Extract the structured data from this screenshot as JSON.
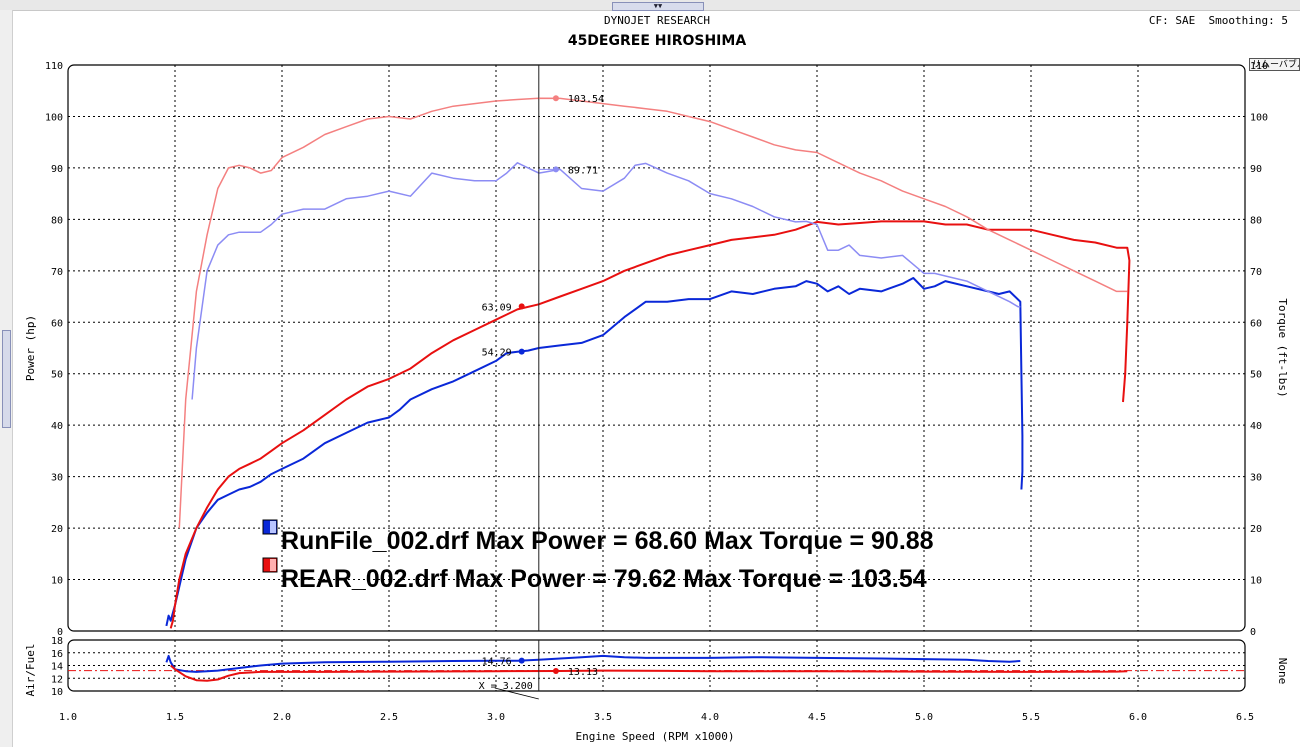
{
  "header": {
    "company": "DYNOJET RESEARCH",
    "title": "45DEGREE HIROSHIMA",
    "correction": "CF: SAE  Smoothing: 5",
    "remove_button": "リムーバブル"
  },
  "colors": {
    "run_power": "#0a28d8",
    "run_torque": "#8c8cf4",
    "rear_power": "#e81010",
    "rear_torque": "#f48080",
    "cursor": "#202020",
    "grid": "#000000"
  },
  "legend": [
    {
      "text": "RunFile_002.drf Max Power = 68.60   Max Torque = 90.88",
      "color": "#0a28d8",
      "icon": "run-file-swatch-icon"
    },
    {
      "text": "REAR_002.drf Max Power = 79.62   Max Torque = 103.54",
      "color": "#e81010",
      "icon": "rear-file-swatch-icon"
    }
  ],
  "chart_data": [
    {
      "type": "line",
      "id": "main",
      "title": "",
      "xlabel": "Engine Speed (RPM x1000)",
      "ylabel": "Power (hp)",
      "ylabel_right": "Torque (ft-lbs)",
      "xlim": [
        1.0,
        6.5
      ],
      "ylim": [
        0,
        110
      ],
      "ylim_right": [
        0,
        110
      ],
      "grid": true,
      "x_ticks": [
        "1.0",
        "1.5",
        "2.0",
        "2.5",
        "3.0",
        "3.5",
        "4.0",
        "4.5",
        "5.0",
        "5.5",
        "6.0",
        "6.5"
      ],
      "y_ticks": [
        "0",
        "10",
        "20",
        "30",
        "40",
        "50",
        "60",
        "70",
        "80",
        "90",
        "100",
        "110"
      ],
      "cursor_x": 3.2,
      "series": [
        {
          "key": "run_power",
          "color": "#0a28d8",
          "width": 2,
          "x": [
            1.46,
            1.47,
            1.48,
            1.5,
            1.55,
            1.6,
            1.65,
            1.7,
            1.75,
            1.8,
            1.85,
            1.9,
            1.95,
            2.0,
            2.1,
            2.2,
            2.3,
            2.4,
            2.5,
            2.55,
            2.6,
            2.7,
            2.8,
            2.9,
            3.0,
            3.05,
            3.1,
            3.15,
            3.2,
            3.3,
            3.4,
            3.5,
            3.6,
            3.7,
            3.8,
            3.9,
            4.0,
            4.1,
            4.2,
            4.3,
            4.4,
            4.45,
            4.5,
            4.55,
            4.6,
            4.65,
            4.7,
            4.8,
            4.9,
            4.95,
            5.0,
            5.05,
            5.1,
            5.2,
            5.3,
            5.35,
            5.4,
            5.45,
            5.455,
            5.46,
            5.46,
            5.455
          ],
          "y": [
            1,
            3,
            2,
            5,
            14,
            20,
            23,
            25.5,
            26.5,
            27.5,
            28,
            29,
            30.5,
            31.5,
            33.5,
            36.5,
            38.5,
            40.5,
            41.5,
            43,
            45,
            47,
            48.5,
            50.5,
            52.5,
            54,
            54.29,
            54.5,
            55,
            55.5,
            56,
            57.5,
            61,
            64,
            64,
            64.5,
            64.5,
            66,
            65.5,
            66.5,
            67,
            68,
            67.5,
            66,
            67,
            65.5,
            66.5,
            66,
            67.5,
            68.6,
            66.5,
            67,
            68,
            67,
            66,
            65.5,
            66,
            64,
            50,
            38,
            31,
            27.5
          ]
        },
        {
          "key": "rear_power",
          "color": "#e81010",
          "width": 2,
          "x": [
            1.48,
            1.49,
            1.5,
            1.52,
            1.55,
            1.6,
            1.65,
            1.7,
            1.75,
            1.8,
            1.85,
            1.9,
            1.95,
            2.0,
            2.1,
            2.2,
            2.3,
            2.4,
            2.5,
            2.6,
            2.7,
            2.8,
            2.9,
            3.0,
            3.1,
            3.2,
            3.3,
            3.4,
            3.5,
            3.6,
            3.7,
            3.8,
            3.9,
            4.0,
            4.1,
            4.2,
            4.3,
            4.4,
            4.5,
            4.6,
            4.7,
            4.8,
            4.9,
            5.0,
            5.1,
            5.2,
            5.3,
            5.4,
            5.5,
            5.6,
            5.7,
            5.8,
            5.9,
            5.95,
            5.96,
            5.95,
            5.94,
            5.93
          ],
          "y": [
            0.5,
            2,
            5,
            10,
            15,
            20,
            24,
            27.5,
            30,
            31.5,
            32.5,
            33.5,
            35,
            36.5,
            39,
            42,
            45,
            47.5,
            49,
            51,
            54,
            56.5,
            58.5,
            60.5,
            62.5,
            63.5,
            65,
            66.5,
            68,
            70,
            71.5,
            73,
            74,
            75,
            76,
            76.5,
            77,
            78,
            79.5,
            79,
            79.3,
            79.6,
            79.6,
            79.6,
            79,
            79,
            78,
            78,
            78,
            77,
            76,
            75.5,
            74.5,
            74.5,
            72,
            60,
            50,
            44.5
          ]
        },
        {
          "key": "run_torque",
          "color": "#8c8cf4",
          "width": 1.5,
          "x": [
            1.58,
            1.6,
            1.65,
            1.7,
            1.75,
            1.8,
            1.85,
            1.9,
            1.95,
            2.0,
            2.1,
            2.2,
            2.3,
            2.4,
            2.5,
            2.6,
            2.7,
            2.8,
            2.9,
            3.0,
            3.05,
            3.1,
            3.2,
            3.3,
            3.4,
            3.5,
            3.6,
            3.65,
            3.7,
            3.8,
            3.9,
            4.0,
            4.1,
            4.2,
            4.3,
            4.4,
            4.45,
            4.5,
            4.55,
            4.6,
            4.65,
            4.7,
            4.8,
            4.9,
            5.0,
            5.05,
            5.1,
            5.2,
            5.3,
            5.4,
            5.44,
            5.45
          ],
          "y": [
            45,
            55,
            70,
            75,
            77,
            77.5,
            77.5,
            77.5,
            79,
            81,
            82,
            82,
            84,
            84.5,
            85.5,
            84.5,
            89,
            88,
            87.5,
            87.5,
            89,
            91,
            89,
            89.71,
            86,
            85.5,
            88,
            90.5,
            90.88,
            89,
            87.5,
            85,
            84,
            82.5,
            80.5,
            79.5,
            79.6,
            79,
            74,
            74,
            75,
            73,
            72.5,
            73,
            69.5,
            69.5,
            69,
            68,
            66,
            64,
            63,
            63
          ]
        },
        {
          "key": "rear_torque",
          "color": "#f48080",
          "width": 1.5,
          "x": [
            1.52,
            1.55,
            1.6,
            1.65,
            1.7,
            1.75,
            1.8,
            1.85,
            1.9,
            1.95,
            2.0,
            2.1,
            2.2,
            2.3,
            2.4,
            2.5,
            2.6,
            2.7,
            2.8,
            2.9,
            3.0,
            3.1,
            3.2,
            3.3,
            3.4,
            3.5,
            3.6,
            3.7,
            3.8,
            3.9,
            4.0,
            4.1,
            4.2,
            4.3,
            4.4,
            4.5,
            4.6,
            4.7,
            4.8,
            4.9,
            5.0,
            5.1,
            5.2,
            5.3,
            5.4,
            5.5,
            5.6,
            5.7,
            5.8,
            5.9,
            5.95
          ],
          "y": [
            20,
            45,
            66,
            77,
            86,
            90,
            90.5,
            90,
            89,
            89.5,
            92,
            94,
            96.5,
            98,
            99.5,
            100,
            99.5,
            101,
            102,
            102.5,
            103,
            103.3,
            103.54,
            103.5,
            103,
            102.5,
            102,
            101.5,
            101,
            100,
            99,
            97.5,
            96,
            94.5,
            93.5,
            93,
            91,
            89,
            87.5,
            85.5,
            84,
            82.5,
            80.5,
            78,
            76,
            74,
            72,
            70,
            68,
            66,
            66
          ]
        }
      ],
      "labels": [
        {
          "text": "103.54",
          "x": 3.28,
          "y": 103.54,
          "color": "#f48080",
          "side": "right"
        },
        {
          "text": "89.71",
          "x": 3.28,
          "y": 89.71,
          "color": "#8c8cf4",
          "side": "right"
        },
        {
          "text": "63.09",
          "x": 3.12,
          "y": 63.09,
          "color": "#e81010",
          "side": "left"
        },
        {
          "text": "54.29",
          "x": 3.12,
          "y": 54.29,
          "color": "#0a28d8",
          "side": "left"
        }
      ]
    },
    {
      "type": "line",
      "id": "af",
      "title": "",
      "xlabel": "",
      "ylabel": "Air/Fuel",
      "ylabel_right": "None",
      "xlim": [
        1.0,
        6.5
      ],
      "ylim": [
        10,
        18
      ],
      "grid": true,
      "y_ticks": [
        "10",
        "12",
        "14",
        "16",
        "18"
      ],
      "reference_y": 13.2,
      "cursor_x": 3.2,
      "cursor_label": "X = 3.200",
      "series": [
        {
          "key": "run_af",
          "color": "#0a28d8",
          "width": 2,
          "x": [
            1.46,
            1.47,
            1.48,
            1.5,
            1.55,
            1.6,
            1.7,
            1.8,
            1.9,
            2.0,
            2.2,
            2.5,
            2.8,
            3.0,
            3.1,
            3.2,
            3.3,
            3.4,
            3.5,
            3.6,
            3.7,
            3.8,
            4.0,
            4.2,
            4.5,
            4.8,
            5.0,
            5.2,
            5.3,
            5.4,
            5.45
          ],
          "y": [
            14.5,
            15.5,
            14.5,
            13.4,
            13.1,
            13.0,
            13.2,
            13.6,
            14.0,
            14.3,
            14.5,
            14.6,
            14.7,
            14.75,
            14.76,
            14.9,
            15.1,
            15.3,
            15.5,
            15.3,
            15.2,
            15.2,
            15.2,
            15.3,
            15.2,
            15.1,
            15.0,
            14.9,
            14.7,
            14.6,
            14.7
          ]
        },
        {
          "key": "rear_af",
          "color": "#e81010",
          "width": 2,
          "x": [
            1.48,
            1.5,
            1.55,
            1.6,
            1.65,
            1.7,
            1.75,
            1.8,
            1.9,
            2.0,
            2.2,
            2.5,
            3.0,
            3.3,
            3.5,
            3.8,
            4.0,
            4.5,
            5.0,
            5.5,
            5.9,
            5.95
          ],
          "y": [
            14.0,
            13.4,
            12.3,
            11.7,
            11.6,
            11.8,
            12.4,
            12.8,
            13.0,
            13.0,
            13.0,
            13.05,
            13.1,
            13.13,
            13.2,
            13.15,
            13.1,
            13.1,
            13.05,
            13.0,
            13.05,
            13.1
          ]
        }
      ],
      "labels": [
        {
          "text": "14.76",
          "x": 3.12,
          "y": 14.76,
          "color": "#0a28d8",
          "side": "left"
        },
        {
          "text": "13.13",
          "x": 3.28,
          "y": 13.13,
          "color": "#e81010",
          "side": "right"
        }
      ]
    }
  ]
}
